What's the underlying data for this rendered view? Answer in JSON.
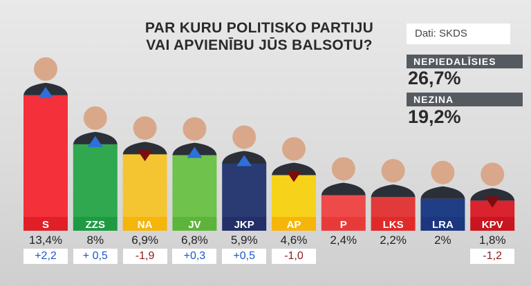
{
  "header": {
    "title_line1": "PAR KURU POLITISKO PARTIJU",
    "title_line2": "VAI APVIENĪBU JŪS BALSOTU?",
    "source": "Dati: SKDS"
  },
  "side_stats": [
    {
      "label": "NEPIEDALĪSIES",
      "value": "26,7%"
    },
    {
      "label": "NEZINA",
      "value": "19,2%"
    }
  ],
  "colors": {
    "positive_change": "#1a55c8",
    "negative_change": "#8b1a1a",
    "up_arrow": "#2e6fd8",
    "down_arrow": "#7a0d0d"
  },
  "chart_data": {
    "type": "bar",
    "categories": [
      "S",
      "ZZS",
      "NA",
      "JV",
      "JKP",
      "AP",
      "P",
      "LKS",
      "LRA",
      "KPV"
    ],
    "values": [
      13.4,
      8,
      6.9,
      6.8,
      5.9,
      4.6,
      2.4,
      2.2,
      2,
      1.8
    ],
    "value_labels": [
      "13,4%",
      "8%",
      "6,9%",
      "6,8%",
      "5,9%",
      "4,6%",
      "2,4%",
      "2,2%",
      "2%",
      "1,8%"
    ],
    "change_labels": [
      "+2,2",
      "+ 0,5",
      "-1,9",
      "+0,3",
      "+0,5",
      "-1,0",
      "",
      "",
      "",
      "-1,2"
    ],
    "change_direction": [
      "up",
      "up",
      "down",
      "up",
      "up",
      "down",
      "none",
      "none",
      "none",
      "down"
    ],
    "bar_colors": [
      "#f4303a",
      "#2fa84f",
      "#f5c531",
      "#6fc24b",
      "#2a3a73",
      "#f7d21a",
      "#ef4a4a",
      "#e23a3a",
      "#1f3e86",
      "#d9232e"
    ],
    "label_colors": [
      "#e11f28",
      "#1f9a42",
      "#f5b50a",
      "#5db43a",
      "#232f66",
      "#f5b50a",
      "#e93a3a",
      "#e02a2a",
      "#1c3680",
      "#c8151f"
    ],
    "ylim": [
      0,
      14
    ]
  }
}
